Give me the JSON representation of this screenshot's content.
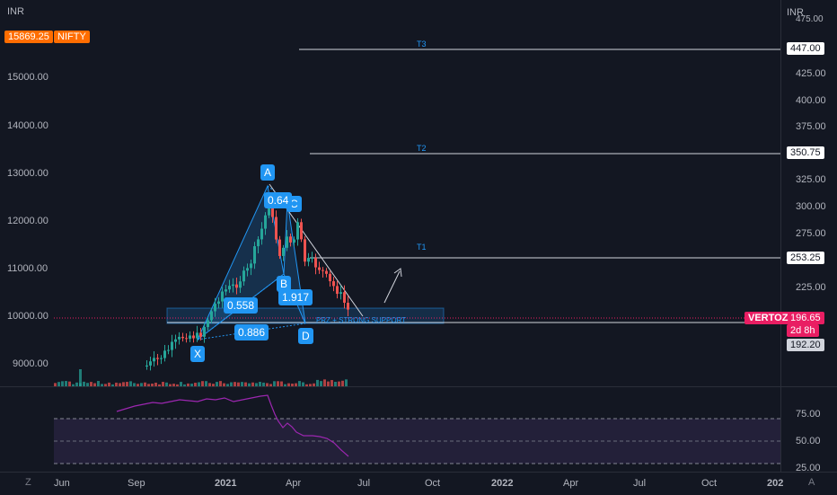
{
  "header": {
    "currency_left": "INR",
    "currency_right": "INR",
    "index_value": "15869.25",
    "index_name": "NIFTY",
    "top_right_tick": "475.00"
  },
  "left_axis": [
    "15000.00",
    "14000.00",
    "13000.00",
    "12000.00",
    "11000.00",
    "10000.00",
    "9000.00"
  ],
  "right_axis": [
    "425.00",
    "400.00",
    "375.00",
    "325.00",
    "300.00",
    "275.00",
    "225.00"
  ],
  "targets": [
    {
      "label": "T3",
      "price": "447.00"
    },
    {
      "label": "T2",
      "price": "350.75"
    },
    {
      "label": "T1",
      "price": "253.25"
    }
  ],
  "support": {
    "price": "192.20",
    "note": "PRZ + STRONG SUPPORT"
  },
  "current": {
    "symbol": "VERTOZ",
    "price": "196.65",
    "countdown": "2d 8h"
  },
  "pattern_points": {
    "X": "X",
    "A": "A",
    "B": "B",
    "C": "C",
    "D": "D"
  },
  "ratios": {
    "xab": "0.558",
    "abc": "0.64",
    "bcd": "1.917",
    "xad": "0.886"
  },
  "rsi_axis": [
    "75.00",
    "50.00",
    "25.00"
  ],
  "time_axis": [
    "Jun",
    "Sep",
    "2021",
    "Apr",
    "Jul",
    "Oct",
    "2022",
    "Apr",
    "Jul",
    "Oct",
    "202"
  ],
  "corner": {
    "left": "Z",
    "right": "A"
  },
  "colors": {
    "up": "#26a69a",
    "down": "#ef5350",
    "pattern": "#2196f3",
    "current": "#e91e63",
    "rsi": "#9c27b0"
  }
}
